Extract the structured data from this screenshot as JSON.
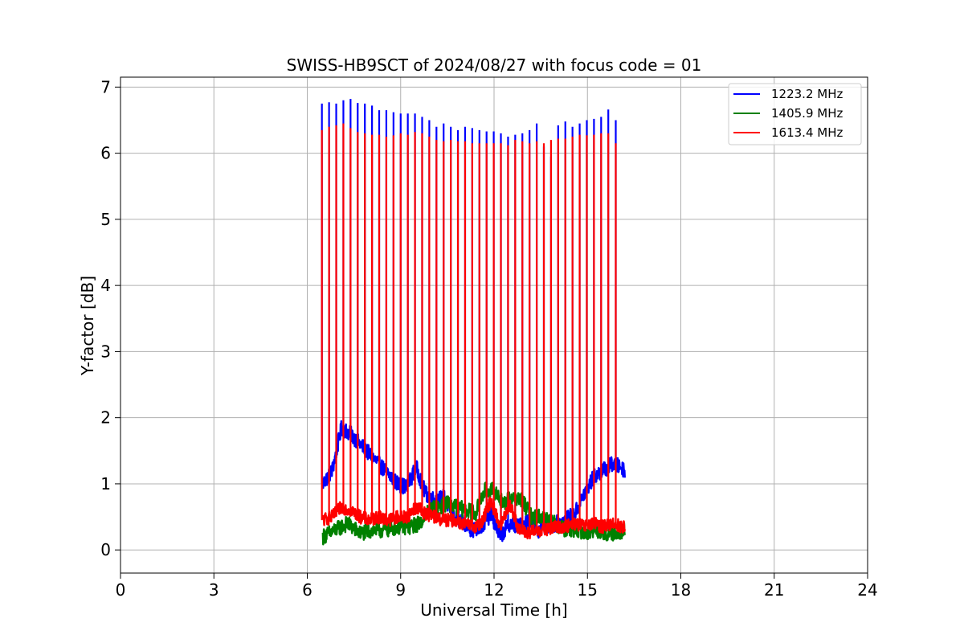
{
  "chart_data": {
    "type": "line",
    "title": "SWISS-HB9SCT of 2024/08/27 with focus code = 01",
    "xlabel": "Universal Time [h]",
    "ylabel": "Y-factor [dB]",
    "xlim": [
      0,
      24
    ],
    "ylim": [
      -0.35,
      7.15
    ],
    "xticks": [
      0,
      3,
      6,
      9,
      12,
      15,
      18,
      21,
      24
    ],
    "yticks": [
      0,
      1,
      2,
      3,
      4,
      5,
      6,
      7
    ],
    "grid": true,
    "legend_position": "upper right",
    "spike_times": [
      6.47,
      6.7,
      6.93,
      7.16,
      7.39,
      7.62,
      7.85,
      8.08,
      8.31,
      8.54,
      8.77,
      9.0,
      9.23,
      9.46,
      9.69,
      9.92,
      10.15,
      10.38,
      10.61,
      10.84,
      11.07,
      11.3,
      11.53,
      11.76,
      11.99,
      12.22,
      12.45,
      12.68,
      12.91,
      13.14,
      13.37,
      13.6,
      13.83,
      14.06,
      14.29,
      14.52,
      14.75,
      14.98,
      15.21,
      15.44,
      15.67,
      15.91
    ],
    "series": [
      {
        "name": "1223.2 MHz",
        "color": "#0000ff",
        "spike_peaks": [
          6.75,
          6.77,
          6.75,
          6.8,
          6.82,
          6.76,
          6.75,
          6.72,
          6.65,
          6.65,
          6.62,
          6.6,
          6.6,
          6.6,
          6.55,
          6.5,
          6.4,
          6.45,
          6.4,
          6.35,
          6.4,
          6.38,
          6.35,
          6.33,
          6.33,
          6.3,
          6.25,
          6.28,
          6.3,
          6.35,
          6.45,
          6.1,
          5.95,
          6.42,
          6.48,
          6.4,
          6.45,
          6.5,
          6.52,
          6.55,
          6.66,
          6.5
        ],
        "baseline": {
          "x": [
            6.5,
            6.8,
            7.1,
            7.4,
            7.7,
            8.0,
            8.3,
            8.6,
            8.9,
            9.2,
            9.5,
            9.8,
            10.1,
            10.4,
            10.7,
            11.0,
            11.3,
            11.6,
            11.9,
            12.2,
            12.5,
            12.8,
            13.1,
            13.4,
            13.7,
            14.0,
            14.3,
            14.6,
            14.9,
            15.2,
            15.5,
            15.8,
            16.1,
            16.2
          ],
          "y": [
            1.0,
            1.2,
            1.85,
            1.75,
            1.6,
            1.45,
            1.3,
            1.15,
            1.0,
            0.95,
            1.25,
            0.85,
            0.75,
            0.8,
            0.5,
            0.4,
            0.3,
            0.35,
            0.55,
            0.2,
            0.4,
            0.35,
            0.45,
            0.3,
            0.35,
            0.4,
            0.45,
            0.55,
            0.85,
            1.1,
            1.2,
            1.3,
            1.25,
            1.2
          ],
          "noise": 0.12
        }
      },
      {
        "name": "1405.9 MHz",
        "color": "#008000",
        "spike_peaks": [],
        "baseline": {
          "x": [
            6.5,
            6.9,
            7.3,
            7.7,
            8.1,
            8.5,
            8.9,
            9.3,
            9.6,
            9.9,
            10.2,
            10.5,
            10.8,
            11.1,
            11.4,
            11.7,
            12.0,
            12.3,
            12.6,
            12.9,
            13.2,
            13.5,
            13.8,
            14.1,
            14.4,
            14.7,
            15.0,
            15.3,
            15.6,
            15.9,
            16.2
          ],
          "y": [
            0.2,
            0.3,
            0.4,
            0.25,
            0.3,
            0.3,
            0.35,
            0.35,
            0.4,
            0.6,
            0.65,
            0.7,
            0.65,
            0.6,
            0.55,
            0.9,
            0.9,
            0.7,
            0.8,
            0.75,
            0.5,
            0.5,
            0.45,
            0.35,
            0.3,
            0.3,
            0.25,
            0.3,
            0.25,
            0.25,
            0.3
          ],
          "noise": 0.12
        }
      },
      {
        "name": "1613.4 MHz",
        "color": "#ff0000",
        "spike_peaks": [
          6.35,
          6.4,
          6.42,
          6.45,
          6.38,
          6.32,
          6.3,
          6.28,
          6.28,
          6.25,
          6.27,
          6.3,
          6.28,
          6.32,
          6.3,
          6.25,
          6.2,
          6.18,
          6.2,
          6.18,
          6.18,
          6.15,
          6.15,
          6.15,
          6.15,
          6.15,
          6.12,
          6.2,
          6.18,
          6.15,
          6.18,
          6.15,
          6.2,
          6.22,
          6.22,
          6.25,
          6.28,
          6.27,
          6.28,
          6.3,
          6.3,
          6.15
        ],
        "baseline": {
          "x": [
            6.5,
            6.8,
            7.1,
            7.4,
            7.7,
            8.0,
            8.3,
            8.6,
            8.9,
            9.2,
            9.5,
            9.8,
            10.1,
            10.4,
            10.7,
            11.0,
            11.3,
            11.6,
            11.9,
            12.2,
            12.5,
            12.8,
            13.1,
            13.4,
            13.7,
            14.0,
            14.3,
            14.6,
            14.9,
            15.2,
            15.5,
            15.8,
            16.1,
            16.2
          ],
          "y": [
            0.45,
            0.5,
            0.65,
            0.6,
            0.5,
            0.45,
            0.5,
            0.45,
            0.5,
            0.5,
            0.65,
            0.55,
            0.5,
            0.45,
            0.45,
            0.4,
            0.35,
            0.4,
            0.75,
            0.35,
            0.7,
            0.3,
            0.25,
            0.3,
            0.3,
            0.35,
            0.35,
            0.4,
            0.35,
            0.4,
            0.35,
            0.4,
            0.35,
            0.35
          ],
          "noise": 0.1
        }
      }
    ]
  }
}
